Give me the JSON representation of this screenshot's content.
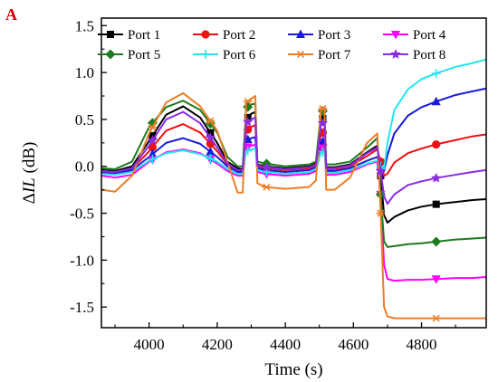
{
  "panel_letter": "A",
  "chart_data": {
    "type": "line",
    "title": "",
    "xlabel": "Time (s)",
    "ylabel_prefix": "Δ",
    "ylabel_var": "IL",
    "ylabel_unit": " (dB)",
    "xlim": [
      3860,
      4990
    ],
    "ylim": [
      -1.72,
      1.58
    ],
    "x_ticks": [
      4000,
      4200,
      4400,
      4600,
      4800
    ],
    "y_ticks": [
      -1.5,
      -1.0,
      -0.5,
      0.0,
      0.5,
      1.0,
      1.5
    ],
    "y_tick_labels": [
      "-1.5",
      "-1.0",
      "-0.5",
      "0.0",
      "0.5",
      "1.0",
      "1.5"
    ],
    "grid": false,
    "legend": {
      "position": "top",
      "columns": 4
    },
    "series": [
      {
        "name": "Port 1",
        "color": "#000000",
        "marker": "square",
        "x": [
          3860,
          3900,
          3950,
          4000,
          4050,
          4100,
          4150,
          4200,
          4230,
          4260,
          4275,
          4285,
          4300,
          4312,
          4318,
          4340,
          4400,
          4470,
          4490,
          4505,
          4515,
          4520,
          4545,
          4590,
          4640,
          4670,
          4680,
          4690,
          4700,
          4720,
          4760,
          4800,
          4850,
          4900,
          4950,
          4990
        ],
        "y": [
          -0.04,
          -0.05,
          0.0,
          0.27,
          0.55,
          0.64,
          0.52,
          0.25,
          0.05,
          -0.02,
          -0.03,
          0.5,
          0.56,
          0.58,
          0.02,
          0.0,
          -0.02,
          0.0,
          0.03,
          0.5,
          0.52,
          -0.01,
          -0.01,
          0.02,
          0.15,
          0.22,
          -0.1,
          -0.52,
          -0.6,
          -0.54,
          -0.47,
          -0.43,
          -0.4,
          -0.38,
          -0.36,
          -0.35
        ],
        "marker_x": [
          4010,
          4180,
          4290,
          4345,
          4510,
          4680,
          4843
        ]
      },
      {
        "name": "Port 2",
        "color": "#ee1111",
        "marker": "circle",
        "x": [
          3860,
          3900,
          3950,
          4000,
          4050,
          4100,
          4150,
          4200,
          4230,
          4260,
          4275,
          4285,
          4300,
          4312,
          4318,
          4340,
          4400,
          4470,
          4490,
          4505,
          4515,
          4520,
          4545,
          4590,
          4640,
          4670,
          4680,
          4690,
          4700,
          4720,
          4760,
          4800,
          4850,
          4900,
          4950,
          4990
        ],
        "y": [
          -0.06,
          -0.07,
          -0.03,
          0.16,
          0.38,
          0.45,
          0.36,
          0.16,
          0.02,
          -0.05,
          -0.05,
          0.38,
          0.42,
          0.44,
          0.0,
          -0.02,
          -0.04,
          -0.02,
          0.01,
          0.35,
          0.37,
          -0.03,
          -0.03,
          0.0,
          0.11,
          0.18,
          0.05,
          -0.1,
          -0.08,
          0.04,
          0.14,
          0.19,
          0.24,
          0.28,
          0.32,
          0.34
        ],
        "marker_x": [
          4010,
          4180,
          4290,
          4345,
          4510,
          4680,
          4843
        ]
      },
      {
        "name": "Port 3",
        "color": "#1a1adb",
        "marker": "triangle-up",
        "x": [
          3860,
          3900,
          3950,
          4000,
          4050,
          4100,
          4150,
          4200,
          4230,
          4260,
          4275,
          4285,
          4300,
          4312,
          4318,
          4340,
          4400,
          4470,
          4490,
          4505,
          4515,
          4520,
          4545,
          4590,
          4640,
          4670,
          4680,
          4690,
          4700,
          4720,
          4760,
          4800,
          4850,
          4900,
          4950,
          4990
        ],
        "y": [
          -0.07,
          -0.08,
          -0.04,
          0.1,
          0.25,
          0.3,
          0.24,
          0.1,
          0.0,
          -0.06,
          -0.06,
          0.28,
          0.3,
          0.31,
          -0.02,
          -0.04,
          -0.06,
          -0.04,
          -0.01,
          0.26,
          0.27,
          -0.05,
          -0.05,
          -0.02,
          0.06,
          0.1,
          0.0,
          -0.05,
          0.12,
          0.35,
          0.54,
          0.63,
          0.7,
          0.76,
          0.8,
          0.83
        ],
        "marker_x": [
          4010,
          4180,
          4290,
          4345,
          4510,
          4680,
          4843
        ]
      },
      {
        "name": "Port 4",
        "color": "#ff00ff",
        "marker": "triangle-down",
        "x": [
          3860,
          3900,
          3950,
          4000,
          4050,
          4100,
          4150,
          4200,
          4230,
          4260,
          4275,
          4285,
          4300,
          4312,
          4318,
          4340,
          4400,
          4470,
          4490,
          4505,
          4515,
          4520,
          4545,
          4590,
          4640,
          4670,
          4680,
          4690,
          4700,
          4720,
          4760,
          4800,
          4850,
          4900,
          4950,
          4990
        ],
        "y": [
          -0.1,
          -0.12,
          -0.09,
          0.05,
          0.15,
          0.18,
          0.14,
          0.03,
          -0.05,
          -0.1,
          -0.1,
          0.2,
          0.22,
          0.23,
          -0.06,
          -0.08,
          -0.1,
          -0.08,
          -0.05,
          0.19,
          0.2,
          -0.09,
          -0.09,
          -0.06,
          0.02,
          0.05,
          -0.3,
          -1.05,
          -1.2,
          -1.22,
          -1.21,
          -1.21,
          -1.2,
          -1.19,
          -1.19,
          -1.18
        ],
        "marker_x": [
          4010,
          4180,
          4290,
          4345,
          4510,
          4680,
          4843
        ]
      },
      {
        "name": "Port 5",
        "color": "#1d7a1d",
        "marker": "diamond",
        "x": [
          3860,
          3900,
          3950,
          4000,
          4050,
          4100,
          4150,
          4200,
          4230,
          4260,
          4275,
          4285,
          4300,
          4312,
          4318,
          4340,
          4400,
          4470,
          4490,
          4505,
          4515,
          4520,
          4545,
          4590,
          4640,
          4670,
          4680,
          4690,
          4700,
          4720,
          4760,
          4800,
          4850,
          4900,
          4950,
          4990
        ],
        "y": [
          -0.02,
          -0.03,
          0.05,
          0.42,
          0.63,
          0.7,
          0.6,
          0.36,
          0.1,
          0.0,
          0.0,
          0.62,
          0.66,
          0.67,
          0.05,
          0.03,
          0.0,
          0.02,
          0.05,
          0.58,
          0.6,
          0.02,
          0.02,
          0.05,
          0.2,
          0.3,
          -0.3,
          -0.8,
          -0.86,
          -0.85,
          -0.83,
          -0.82,
          -0.8,
          -0.78,
          -0.77,
          -0.76
        ],
        "marker_x": [
          4010,
          4180,
          4290,
          4345,
          4510,
          4680,
          4843
        ]
      },
      {
        "name": "Port 6",
        "color": "#22e5ee",
        "marker": "plus",
        "x": [
          3860,
          3900,
          3950,
          4000,
          4050,
          4100,
          4150,
          4200,
          4230,
          4260,
          4275,
          4285,
          4300,
          4312,
          4318,
          4340,
          4400,
          4470,
          4490,
          4505,
          4515,
          4520,
          4545,
          4590,
          4640,
          4670,
          4680,
          4690,
          4700,
          4720,
          4760,
          4800,
          4850,
          4900,
          4950,
          4990
        ],
        "y": [
          -0.08,
          -0.09,
          -0.06,
          0.06,
          0.14,
          0.17,
          0.13,
          0.05,
          -0.03,
          -0.08,
          -0.08,
          0.16,
          0.18,
          0.19,
          -0.04,
          -0.06,
          -0.08,
          -0.06,
          -0.03,
          0.15,
          0.16,
          -0.07,
          -0.07,
          -0.04,
          0.03,
          0.06,
          0.0,
          -0.03,
          0.25,
          0.6,
          0.82,
          0.93,
          1.0,
          1.06,
          1.1,
          1.14
        ],
        "marker_x": [
          4010,
          4180,
          4290,
          4345,
          4510,
          4680,
          4843
        ]
      },
      {
        "name": "Port 7",
        "color": "#ef7d25",
        "marker": "asterisk",
        "x": [
          3860,
          3900,
          3950,
          4000,
          4050,
          4100,
          4150,
          4200,
          4230,
          4260,
          4275,
          4285,
          4300,
          4312,
          4318,
          4340,
          4400,
          4470,
          4490,
          4505,
          4515,
          4520,
          4545,
          4590,
          4640,
          4670,
          4680,
          4690,
          4700,
          4720,
          4760,
          4800,
          4850,
          4900,
          4950,
          4990
        ],
        "y": [
          -0.25,
          -0.27,
          -0.1,
          0.35,
          0.68,
          0.78,
          0.64,
          0.38,
          0.05,
          -0.28,
          -0.28,
          0.68,
          0.72,
          0.75,
          -0.18,
          -0.22,
          -0.24,
          -0.22,
          -0.15,
          0.6,
          0.63,
          -0.25,
          -0.25,
          -0.12,
          0.25,
          0.35,
          -0.5,
          -1.5,
          -1.6,
          -1.62,
          -1.62,
          -1.62,
          -1.62,
          -1.62,
          -1.62,
          -1.62
        ],
        "marker_x": [
          4010,
          4180,
          4290,
          4345,
          4510,
          4680,
          4843
        ]
      },
      {
        "name": "Port 8",
        "color": "#8a2be2",
        "marker": "star",
        "x": [
          3860,
          3900,
          3950,
          4000,
          4050,
          4100,
          4150,
          4200,
          4230,
          4260,
          4275,
          4285,
          4300,
          4312,
          4318,
          4340,
          4400,
          4470,
          4490,
          4505,
          4515,
          4520,
          4545,
          4590,
          4640,
          4670,
          4680,
          4690,
          4700,
          4720,
          4760,
          4800,
          4850,
          4900,
          4950,
          4990
        ],
        "y": [
          -0.05,
          -0.06,
          -0.02,
          0.22,
          0.5,
          0.58,
          0.46,
          0.2,
          0.03,
          -0.04,
          -0.04,
          0.46,
          0.5,
          0.52,
          0.01,
          -0.01,
          -0.03,
          -0.01,
          0.02,
          0.45,
          0.47,
          -0.02,
          -0.02,
          0.01,
          0.14,
          0.2,
          -0.05,
          -0.32,
          -0.4,
          -0.3,
          -0.2,
          -0.16,
          -0.12,
          -0.09,
          -0.06,
          -0.04
        ],
        "marker_x": [
          4010,
          4180,
          4290,
          4345,
          4510,
          4680,
          4843
        ]
      }
    ]
  }
}
